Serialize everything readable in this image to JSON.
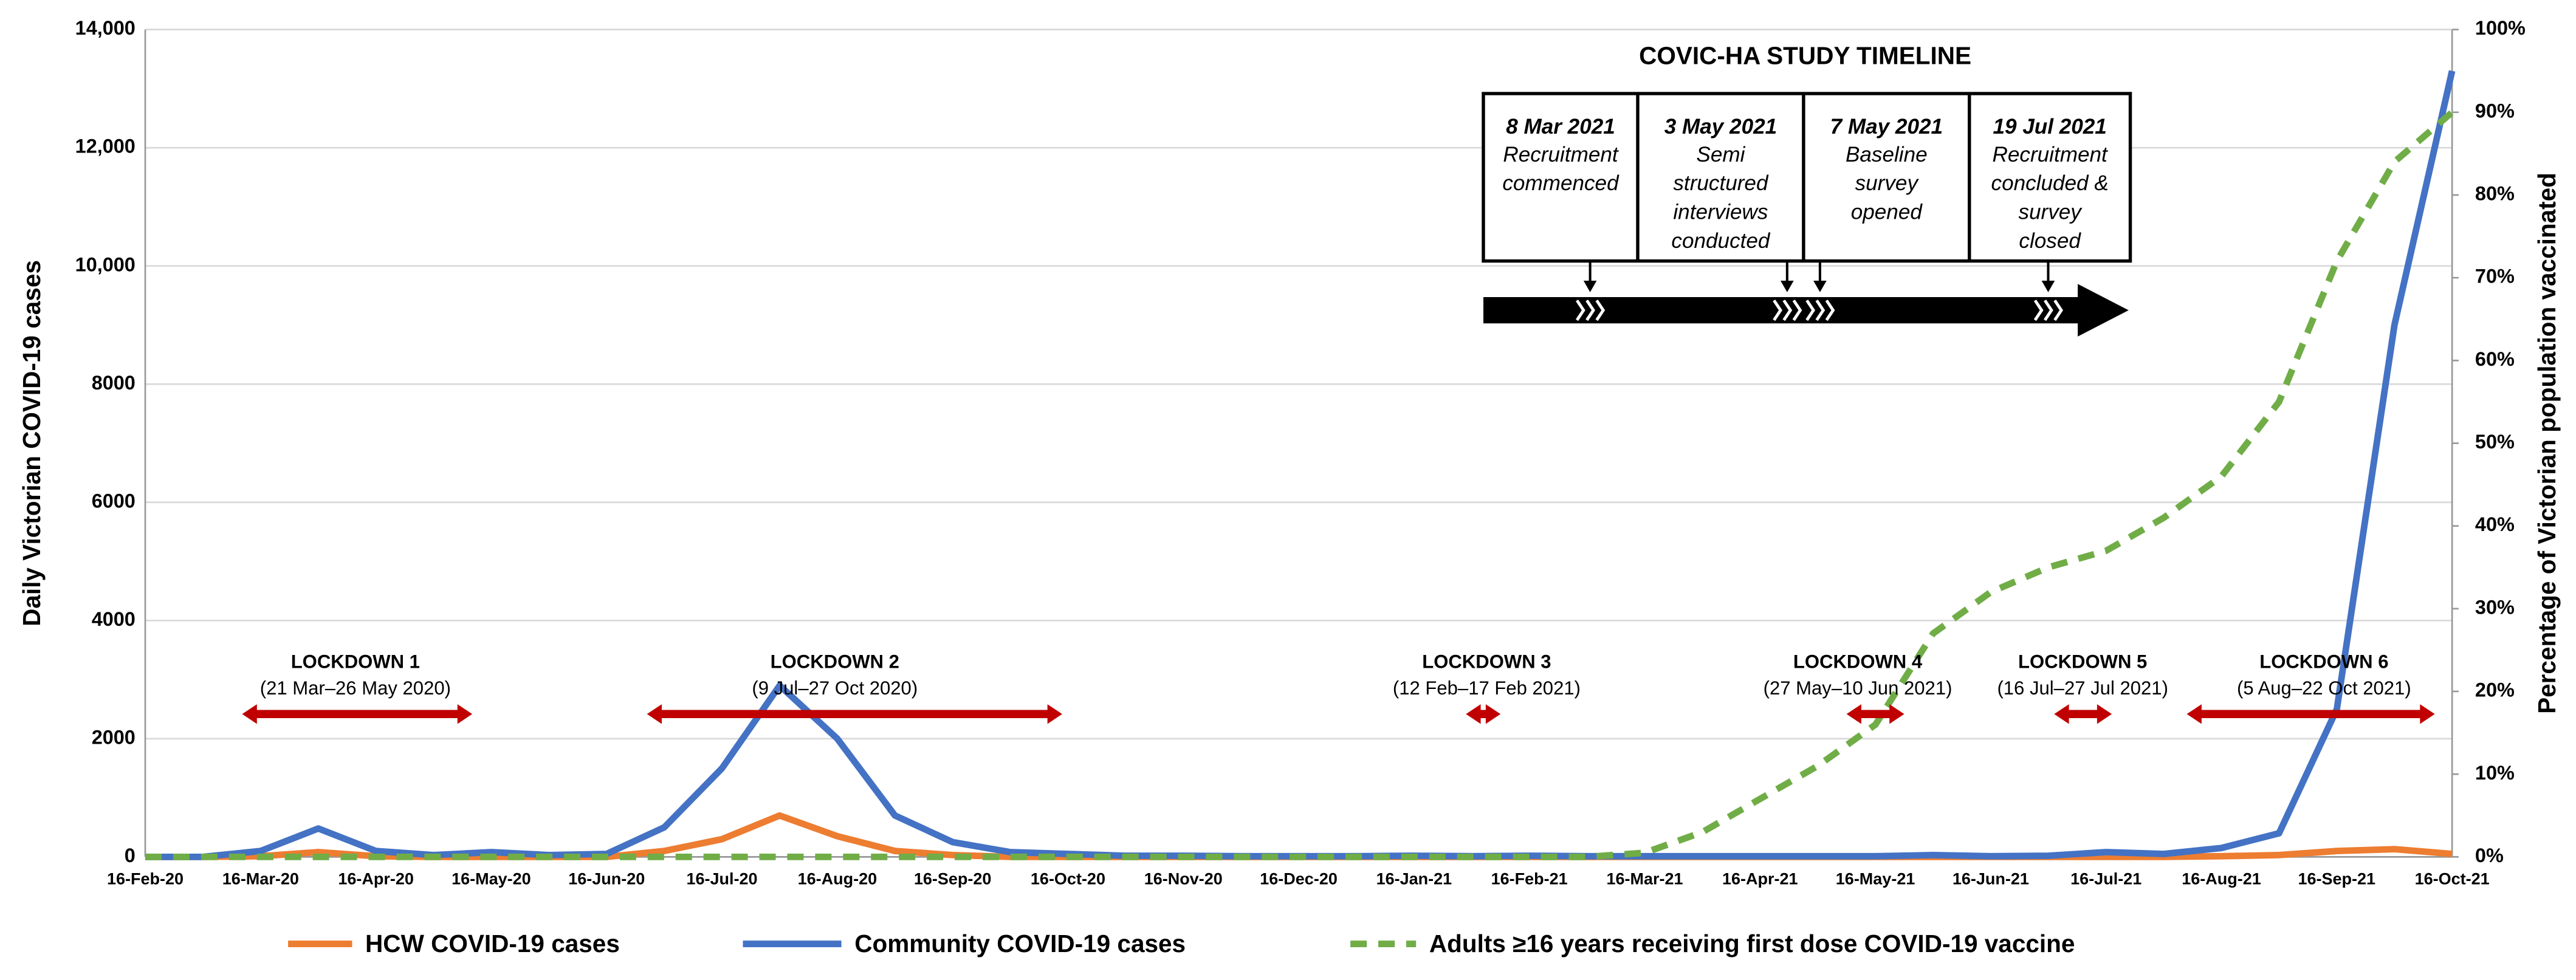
{
  "chart_data": {
    "type": "line",
    "ylabel": "Daily Victorian COVID-19 cases",
    "y2label": "Percentage of Victorian population vaccinated",
    "categories": [
      "16-Feb-20",
      null,
      "16-Mar-20",
      null,
      "16-Apr-20",
      null,
      "16-May-20",
      null,
      "16-Jun-20",
      null,
      "16-Jul-20",
      null,
      "16-Aug-20",
      null,
      "16-Sep-20",
      null,
      "16-Oct-20",
      null,
      "16-Nov-20",
      null,
      "16-Dec-20",
      null,
      "16-Jan-21",
      null,
      "16-Feb-21",
      null,
      "16-Mar-21",
      null,
      "16-Apr-21",
      null,
      "16-May-21",
      null,
      "16-Jun-21",
      null,
      "16-Jul-21",
      null,
      "16-Aug-21",
      null,
      "16-Sep-21",
      null,
      "16-Oct-21"
    ],
    "ylim": [
      0,
      14000
    ],
    "yticks": [
      0,
      2000,
      4000,
      6000,
      8000,
      {
        "value": 10000,
        "label": "10,000"
      },
      {
        "value": 12000,
        "label": "12,000"
      },
      {
        "value": 14000,
        "label": "14,000"
      }
    ],
    "y2lim": [
      0,
      100
    ],
    "y2ticks": [
      {
        "value": 0,
        "label": "0%"
      },
      {
        "value": 10,
        "label": "10%"
      },
      {
        "value": 20,
        "label": "20%"
      },
      {
        "value": 30,
        "label": "30%"
      },
      {
        "value": 40,
        "label": "40%"
      },
      {
        "value": 50,
        "label": "50%"
      },
      {
        "value": 60,
        "label": "60%"
      },
      {
        "value": 70,
        "label": "70%"
      },
      {
        "value": 80,
        "label": "80%"
      },
      {
        "value": 90,
        "label": "90%"
      },
      {
        "value": 100,
        "label": "100%"
      }
    ],
    "grid": true,
    "series": [
      {
        "name": "HCW COVID-19 cases",
        "color": "#ed7d31",
        "dashed": false,
        "values": [
          0,
          0,
          10,
          80,
          10,
          0,
          0,
          0,
          0,
          100,
          300,
          700,
          350,
          100,
          30,
          0,
          0,
          0,
          0,
          0,
          0,
          0,
          0,
          0,
          0,
          0,
          0,
          0,
          0,
          0,
          0,
          0,
          0,
          0,
          0,
          0,
          10,
          30,
          100,
          130,
          50
        ]
      },
      {
        "name": "Community COVID-19 cases",
        "color": "#4472c4",
        "dashed": false,
        "values": [
          0,
          0,
          100,
          480,
          100,
          30,
          80,
          30,
          50,
          500,
          1500,
          2900,
          2000,
          700,
          250,
          80,
          50,
          20,
          20,
          10,
          10,
          10,
          20,
          10,
          20,
          10,
          10,
          10,
          10,
          10,
          10,
          30,
          10,
          20,
          80,
          50,
          150,
          400,
          2500,
          9000,
          13300
        ]
      },
      {
        "name": "Adults ≥16 years receiving first dose COVID-19 vaccine",
        "color": "#70ad47",
        "dashed": true,
        "axis": "y2",
        "values": [
          0,
          0,
          0,
          0,
          0,
          0,
          0,
          0,
          0,
          0,
          0,
          0,
          0,
          0,
          0,
          0,
          0,
          0,
          0,
          0,
          0,
          0,
          0,
          0,
          0,
          0,
          0.5,
          3,
          7,
          11,
          16,
          27,
          32,
          35,
          37,
          41,
          46,
          55,
          72,
          84,
          90
        ]
      }
    ]
  },
  "lockdowns": [
    {
      "label": "LOCKDOWN 1",
      "dates": "(21 Mar–26 May 2020)"
    },
    {
      "label": "LOCKDOWN 2",
      "dates": "(9 Jul–27 Oct 2020)"
    },
    {
      "label": "LOCKDOWN 3",
      "dates": "(12 Feb–17 Feb 2021)"
    },
    {
      "label": "LOCKDOWN 4",
      "dates": "(27 May–10 Jun 2021)"
    },
    {
      "label": "LOCKDOWN 5",
      "dates": "(16 Jul–27 Jul 2021)"
    },
    {
      "label": "LOCKDOWN 6",
      "dates": "(5 Aug–22 Oct 2021)"
    }
  ],
  "timeline": {
    "title": "COVIC-HA STUDY TIMELINE",
    "events": [
      {
        "date": "8 Mar 2021",
        "lines": [
          "Recruitment",
          "commenced"
        ]
      },
      {
        "date": "3 May 2021",
        "lines": [
          "Semi",
          "structured",
          "interviews",
          "conducted"
        ]
      },
      {
        "date": "7 May 2021",
        "lines": [
          "Baseline",
          "survey",
          "opened"
        ]
      },
      {
        "date": "19 Jul 2021",
        "lines": [
          "Recruitment",
          "concluded &",
          "survey",
          "closed"
        ]
      }
    ]
  }
}
